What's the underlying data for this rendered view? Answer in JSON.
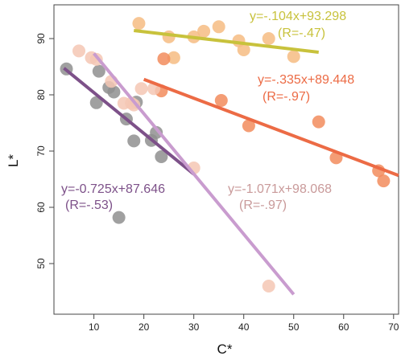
{
  "chart_data": {
    "type": "scatter",
    "xlabel": "C*",
    "ylabel": "L*",
    "xlim": [
      2,
      71
    ],
    "ylim": [
      41,
      96
    ],
    "x_ticks": [
      10,
      20,
      30,
      40,
      50,
      60,
      70
    ],
    "y_ticks": [
      50,
      60,
      70,
      80,
      90
    ],
    "grid": false,
    "series": [
      {
        "color": "#c8c23c",
        "point_color": "#f6bc82",
        "points": [
          [
            19,
            92.7
          ],
          [
            25,
            90.3
          ],
          [
            26,
            86.6
          ],
          [
            30,
            90.3
          ],
          [
            32,
            91.3
          ],
          [
            35,
            92.1
          ],
          [
            39,
            89.6
          ],
          [
            40,
            88.0
          ],
          [
            45,
            90.0
          ],
          [
            50,
            86.8
          ]
        ],
        "fit": {
          "x": [
            18,
            55
          ],
          "slope": -0.104,
          "intercept": 93.298
        },
        "equation": "y=-.104x+93.298",
        "r_label": "(R=-.47)"
      },
      {
        "color": "#ec6b45",
        "point_color": "#f28c5d",
        "points": [
          [
            23.5,
            80.7
          ],
          [
            24,
            86.4
          ],
          [
            35.5,
            79.0
          ],
          [
            41,
            74.5
          ],
          [
            55,
            75.2
          ],
          [
            58.5,
            68.8
          ],
          [
            67,
            66.5
          ],
          [
            68,
            64.7
          ]
        ],
        "fit": {
          "x": [
            20,
            71
          ],
          "slope": -0.335,
          "intercept": 89.448
        },
        "equation": "y=-.335x+89.448",
        "r_label": "(R=-.97)"
      },
      {
        "color": "#7d5189",
        "point_color": "#8f8f8f",
        "points": [
          [
            4.5,
            84.6
          ],
          [
            10.5,
            78.6
          ],
          [
            11,
            84.2
          ],
          [
            13,
            81.3
          ],
          [
            14,
            80.5
          ],
          [
            15,
            58.2
          ],
          [
            16.5,
            75.7
          ],
          [
            18,
            71.8
          ],
          [
            18.5,
            78.7
          ],
          [
            21.5,
            71.9
          ],
          [
            22.5,
            73.3
          ],
          [
            23.5,
            69.0
          ]
        ],
        "fit": {
          "x": [
            4,
            30
          ],
          "slope": -0.725,
          "intercept": 87.646
        },
        "equation": "y=-0.725x+87.646",
        "r_label": "(R=-.53)"
      },
      {
        "color": "#c99ccf",
        "point_color": "#f4c7b4",
        "points": [
          [
            7,
            87.8
          ],
          [
            9.5,
            86.6
          ],
          [
            10.5,
            86.3
          ],
          [
            13.5,
            82.4
          ],
          [
            16,
            78.5
          ],
          [
            17.5,
            78.5
          ],
          [
            18,
            78.2
          ],
          [
            19.5,
            81.1
          ],
          [
            22,
            81.1
          ],
          [
            30,
            67.0
          ],
          [
            45,
            46.0
          ]
        ],
        "fit": {
          "x": [
            10,
            50
          ],
          "slope": -1.071,
          "intercept": 98.068
        },
        "equation": "y=-1.071x+98.068",
        "r_label": "(R=-.97)"
      }
    ]
  }
}
